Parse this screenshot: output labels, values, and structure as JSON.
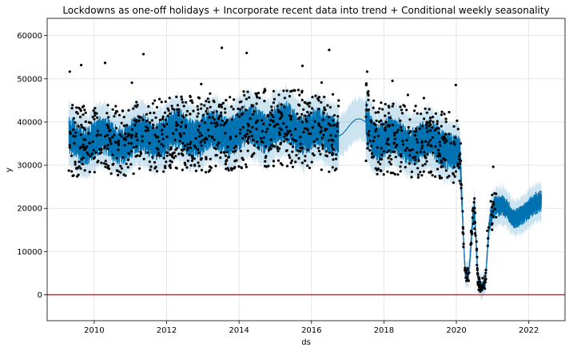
{
  "chart_data": {
    "type": "line",
    "title": "Lockdowns as one-off holidays + Incorporate recent data into trend + Conditional weekly seasonality",
    "xlabel": "ds",
    "ylabel": "y",
    "xlim": [
      2008.7,
      2023.0
    ],
    "ylim": [
      -6000,
      64000
    ],
    "x_ticks": [
      {
        "value": 2010,
        "label": "2010"
      },
      {
        "value": 2012,
        "label": "2012"
      },
      {
        "value": 2014,
        "label": "2014"
      },
      {
        "value": 2016,
        "label": "2016"
      },
      {
        "value": 2018,
        "label": "2018"
      },
      {
        "value": 2020,
        "label": "2020"
      },
      {
        "value": 2022,
        "label": "2022"
      }
    ],
    "y_ticks": [
      {
        "value": 0,
        "label": "0"
      },
      {
        "value": 10000,
        "label": "10000"
      },
      {
        "value": 20000,
        "label": "20000"
      },
      {
        "value": 30000,
        "label": "30000"
      },
      {
        "value": 40000,
        "label": "40000"
      },
      {
        "value": 50000,
        "label": "50000"
      },
      {
        "value": 60000,
        "label": "60000"
      }
    ],
    "grid": true,
    "horizontal_line": {
      "y": 0,
      "color": "#d62728"
    },
    "colors": {
      "forecast": "#0072B2",
      "interval": "#0072B2",
      "observed": "#000000",
      "reference_line": "#d62728"
    },
    "series": [
      {
        "kind": "forecast-mean",
        "x": [
          2009.3,
          2009.6,
          2010.0,
          2010.5,
          2011.0,
          2011.5,
          2012.0,
          2012.5,
          2013.0,
          2013.5,
          2014.0,
          2014.5,
          2015.0,
          2015.5,
          2016.0,
          2016.4,
          2016.75,
          2017.5,
          2017.8,
          2018.3,
          2018.8,
          2019.3,
          2019.8,
          2020.1,
          2020.2,
          2020.25,
          2020.35,
          2020.45,
          2020.5,
          2020.6,
          2020.7,
          2020.8,
          2020.9,
          2021.0,
          2021.3,
          2021.6,
          2022.0,
          2022.35
        ],
        "y": [
          36000,
          35500,
          36000,
          35500,
          36000,
          36500,
          37000,
          37500,
          37000,
          37500,
          38000,
          38500,
          39000,
          38500,
          38000,
          37000,
          38000,
          40000,
          36000,
          36000,
          35500,
          35000,
          34500,
          32000,
          12000,
          4000,
          5000,
          17000,
          20000,
          3000,
          2000,
          3000,
          16000,
          20000,
          20000,
          18000,
          20000,
          21000
        ]
      }
    ],
    "observed_summary": {
      "periods": [
        [
          2009.3,
          2016.75
        ],
        [
          2017.5,
          2021.1
        ]
      ],
      "typical_range": [
        25000,
        48000
      ]
    }
  }
}
